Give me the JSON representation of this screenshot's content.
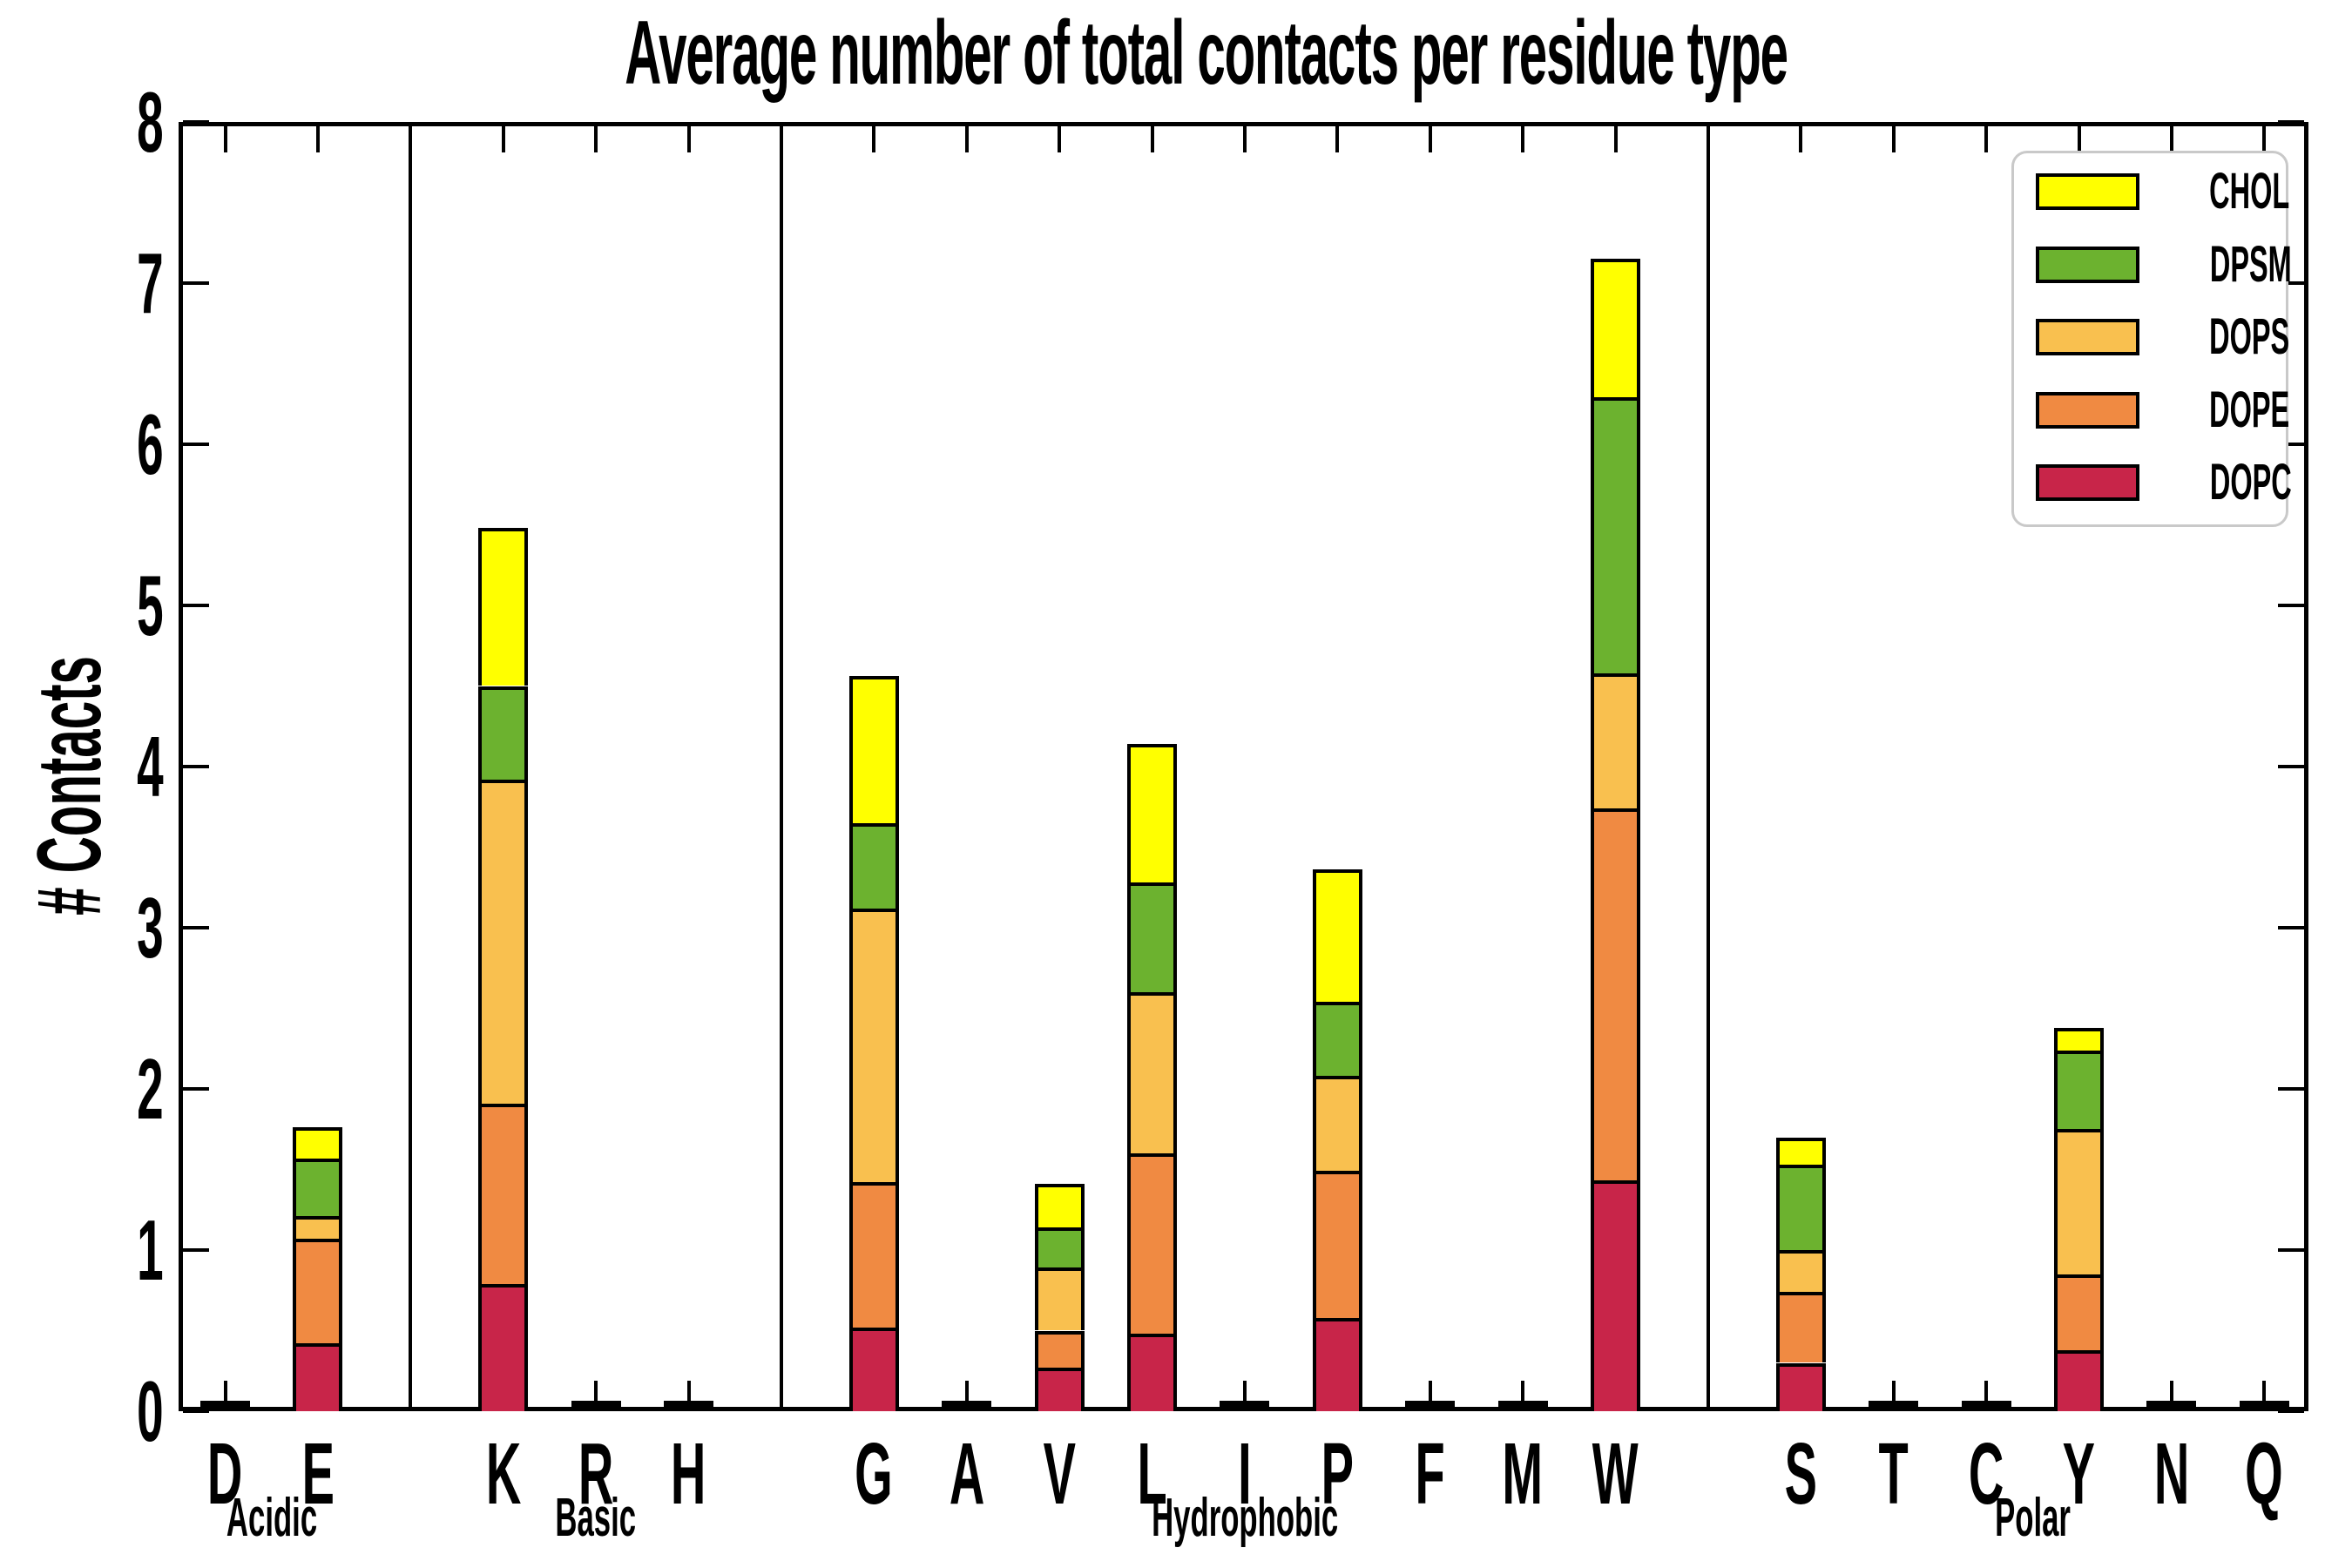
{
  "title": "Average number of total contacts per residue type",
  "chart_data": {
    "type": "bar",
    "stacked": true,
    "title": "Average number of total contacts per residue type",
    "xlabel": "",
    "ylabel": "# Contacts",
    "ylim": [
      0,
      8
    ],
    "yticks": [
      0,
      1,
      2,
      3,
      4,
      5,
      6,
      7,
      8
    ],
    "grid": false,
    "legend_position": "upper right",
    "legend_top_to_bottom": [
      "CHOL",
      "DPSM",
      "DOPS",
      "DOPE",
      "DOPC"
    ],
    "stack_order_bottom_to_top": [
      "DOPC",
      "DOPE",
      "DOPS",
      "DPSM",
      "CHOL"
    ],
    "colors": {
      "CHOL": "#FFFF00",
      "DPSM": "#6CB22F",
      "DOPS": "#F9C04F",
      "DOPE": "#F08A42",
      "DOPC": "#C82549",
      "bar_edge": "#000000",
      "axis": "#000000",
      "legend_border": "#c9c9c9"
    },
    "groups": [
      {
        "label": "Acidic",
        "residues": [
          "D",
          "E"
        ]
      },
      {
        "label": "Basic",
        "residues": [
          "K",
          "R",
          "H"
        ]
      },
      {
        "label": "Hydrophobic",
        "residues": [
          "G",
          "A",
          "V",
          "L",
          "I",
          "P",
          "F",
          "M",
          "W"
        ]
      },
      {
        "label": "Polar",
        "residues": [
          "S",
          "T",
          "C",
          "Y",
          "N",
          "Q"
        ]
      }
    ],
    "values": {
      "D": {
        "DOPC": 0,
        "DOPE": 0,
        "DOPS": 0,
        "DPSM": 0,
        "CHOL": 0
      },
      "E": {
        "DOPC": 0.42,
        "DOPE": 0.65,
        "DOPS": 0.14,
        "DPSM": 0.36,
        "CHOL": 0.19
      },
      "K": {
        "DOPC": 0.79,
        "DOPE": 1.12,
        "DOPS": 2.01,
        "DPSM": 0.58,
        "CHOL": 0.98
      },
      "R": {
        "DOPC": 0,
        "DOPE": 0,
        "DOPS": 0,
        "DPSM": 0,
        "CHOL": 0
      },
      "H": {
        "DOPC": 0,
        "DOPE": 0,
        "DOPS": 0,
        "DPSM": 0,
        "CHOL": 0
      },
      "G": {
        "DOPC": 0.52,
        "DOPE": 0.9,
        "DOPS": 1.7,
        "DPSM": 0.53,
        "CHOL": 0.91
      },
      "A": {
        "DOPC": 0,
        "DOPE": 0,
        "DOPS": 0,
        "DPSM": 0,
        "CHOL": 0
      },
      "V": {
        "DOPC": 0.27,
        "DOPE": 0.23,
        "DOPS": 0.39,
        "DPSM": 0.25,
        "CHOL": 0.27
      },
      "L": {
        "DOPC": 0.48,
        "DOPE": 1.12,
        "DOPS": 1.0,
        "DPSM": 0.68,
        "CHOL": 0.86
      },
      "I": {
        "DOPC": 0,
        "DOPE": 0,
        "DOPS": 0,
        "DPSM": 0,
        "CHOL": 0
      },
      "P": {
        "DOPC": 0.58,
        "DOPE": 0.91,
        "DOPS": 0.59,
        "DPSM": 0.46,
        "CHOL": 0.82
      },
      "F": {
        "DOPC": 0,
        "DOPE": 0,
        "DOPS": 0,
        "DPSM": 0,
        "CHOL": 0
      },
      "M": {
        "DOPC": 0,
        "DOPE": 0,
        "DOPS": 0,
        "DPSM": 0,
        "CHOL": 0
      },
      "W": {
        "DOPC": 1.43,
        "DOPE": 2.31,
        "DOPS": 0.84,
        "DPSM": 1.71,
        "CHOL": 0.86
      },
      "S": {
        "DOPC": 0.3,
        "DOPE": 0.44,
        "DOPS": 0.26,
        "DPSM": 0.53,
        "CHOL": 0.17
      },
      "T": {
        "DOPC": 0,
        "DOPE": 0,
        "DOPS": 0,
        "DPSM": 0,
        "CHOL": 0
      },
      "C": {
        "DOPC": 0,
        "DOPE": 0,
        "DOPS": 0,
        "DPSM": 0,
        "CHOL": 0
      },
      "Y": {
        "DOPC": 0.38,
        "DOPE": 0.47,
        "DOPS": 0.9,
        "DPSM": 0.49,
        "CHOL": 0.14
      },
      "N": {
        "DOPC": 0,
        "DOPE": 0,
        "DOPS": 0,
        "DPSM": 0,
        "CHOL": 0
      },
      "Q": {
        "DOPC": 0,
        "DOPE": 0,
        "DOPS": 0,
        "DPSM": 0,
        "CHOL": 0
      }
    },
    "totals": {
      "D": 0,
      "E": 1.76,
      "K": 5.48,
      "R": 0,
      "H": 0,
      "G": 4.56,
      "A": 0,
      "V": 1.41,
      "L": 4.14,
      "I": 0,
      "P": 3.36,
      "F": 0,
      "M": 0,
      "W": 7.15,
      "S": 1.7,
      "T": 0,
      "C": 0,
      "Y": 2.38,
      "N": 0,
      "Q": 0
    }
  }
}
